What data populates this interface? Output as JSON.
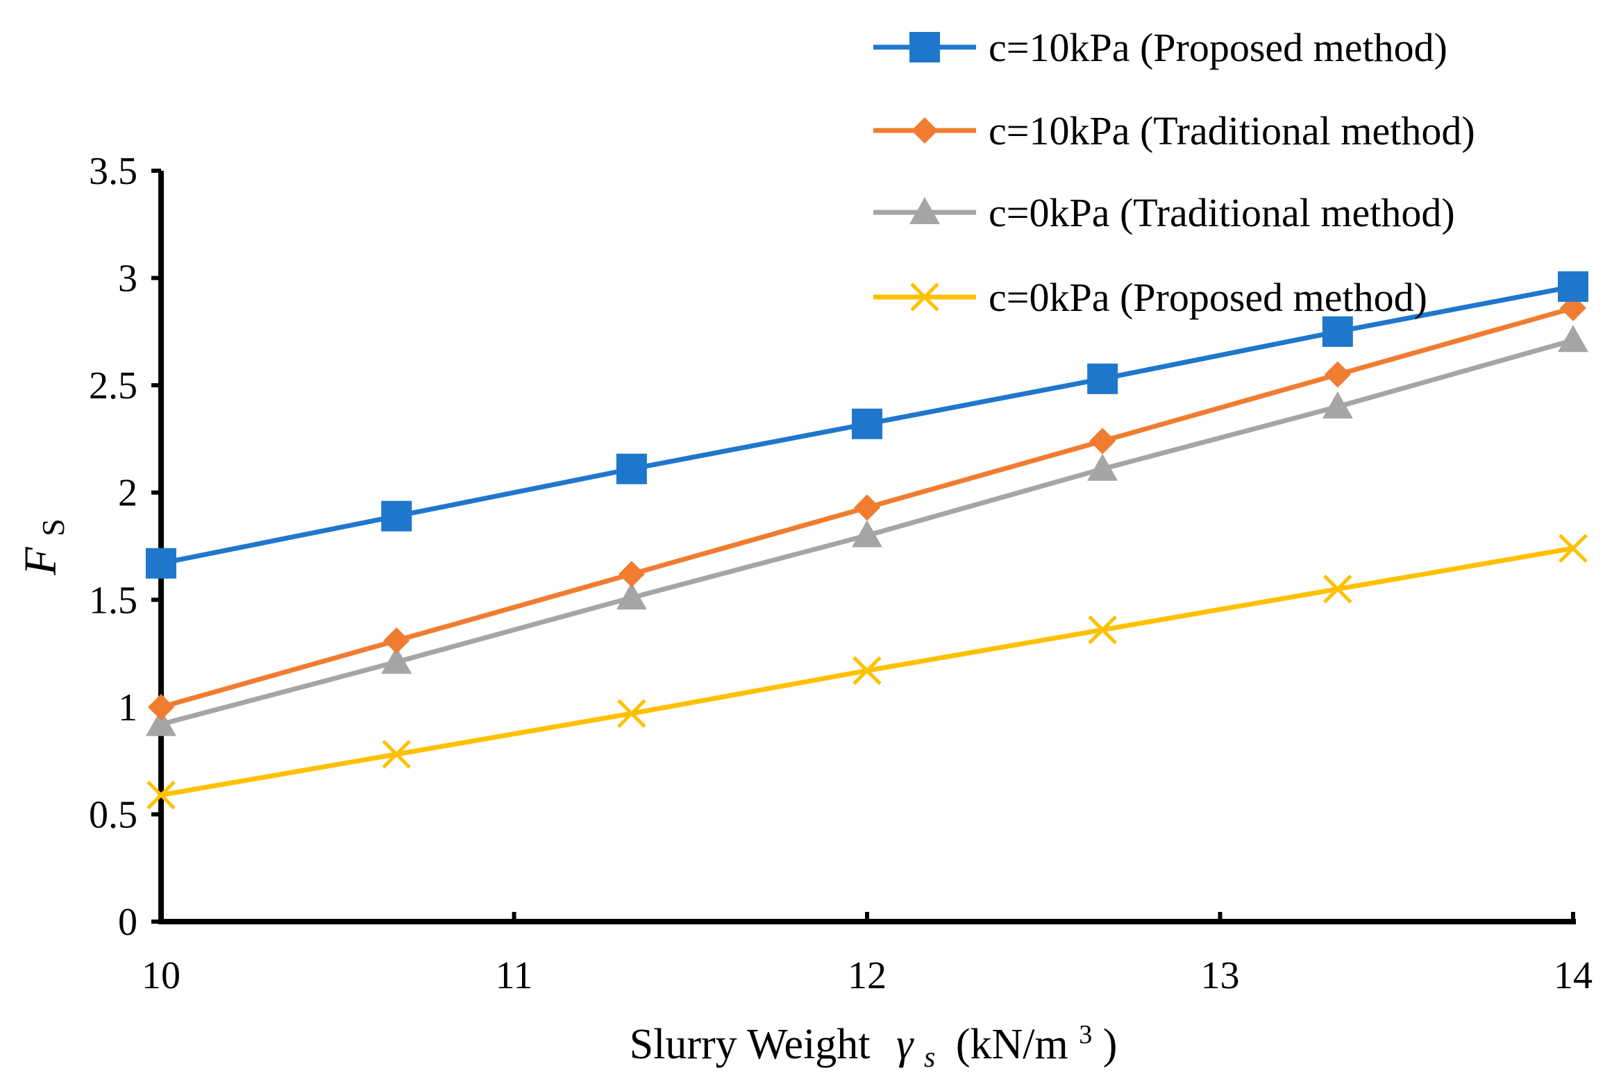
{
  "chart_data": {
    "type": "line",
    "title": "",
    "xlabel": {
      "prefix": "Slurry Weight",
      "symbol": "γ",
      "symbol_subscript": "s",
      "unit_open": "(kN/m",
      "unit_exponent": "3",
      "unit_close": ")"
    },
    "ylabel": {
      "symbol": "F",
      "subscript": "S"
    },
    "xlim": [
      10,
      14
    ],
    "ylim": [
      0,
      3.5
    ],
    "x_ticks": [
      "10",
      "11",
      "12",
      "13",
      "14"
    ],
    "y_ticks": [
      "0",
      "0.5",
      "1",
      "1.5",
      "2",
      "2.5",
      "3",
      "3.5"
    ],
    "x": [
      10,
      10.667,
      11.333,
      12,
      12.667,
      13.333,
      14
    ],
    "legend_position": "top-right",
    "grid": false,
    "series": [
      {
        "name": "c=10kPa (Proposed method)",
        "color": "#1F77CC",
        "marker": "square",
        "values": [
          1.67,
          1.89,
          2.11,
          2.32,
          2.53,
          2.75,
          2.96
        ]
      },
      {
        "name": "c=10kPa (Traditional method)",
        "color": "#F07C31",
        "marker": "diamond",
        "values": [
          1.0,
          1.31,
          1.62,
          1.93,
          2.24,
          2.55,
          2.86
        ]
      },
      {
        "name": "c=0kPa (Traditional method)",
        "color": "#A5A5A5",
        "marker": "triangle",
        "values": [
          0.92,
          1.21,
          1.51,
          1.8,
          2.11,
          2.4,
          2.71
        ]
      },
      {
        "name": "c=0kPa (Proposed method)",
        "color": "#FFC000",
        "marker": "x",
        "values": [
          0.59,
          0.78,
          0.97,
          1.17,
          1.36,
          1.55,
          1.74
        ]
      }
    ]
  }
}
